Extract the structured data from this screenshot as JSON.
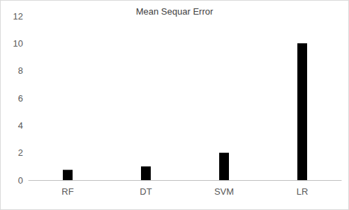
{
  "chart_data": {
    "type": "bar",
    "title": "Mean Sequar Error",
    "categories": [
      "RF",
      "DT",
      "SVM",
      "LR"
    ],
    "values": [
      0.75,
      1,
      2,
      10
    ],
    "color": "#000000",
    "ylim": [
      0,
      12
    ],
    "yticks": [
      0,
      2,
      4,
      6,
      8,
      10,
      12
    ],
    "grid": false
  }
}
